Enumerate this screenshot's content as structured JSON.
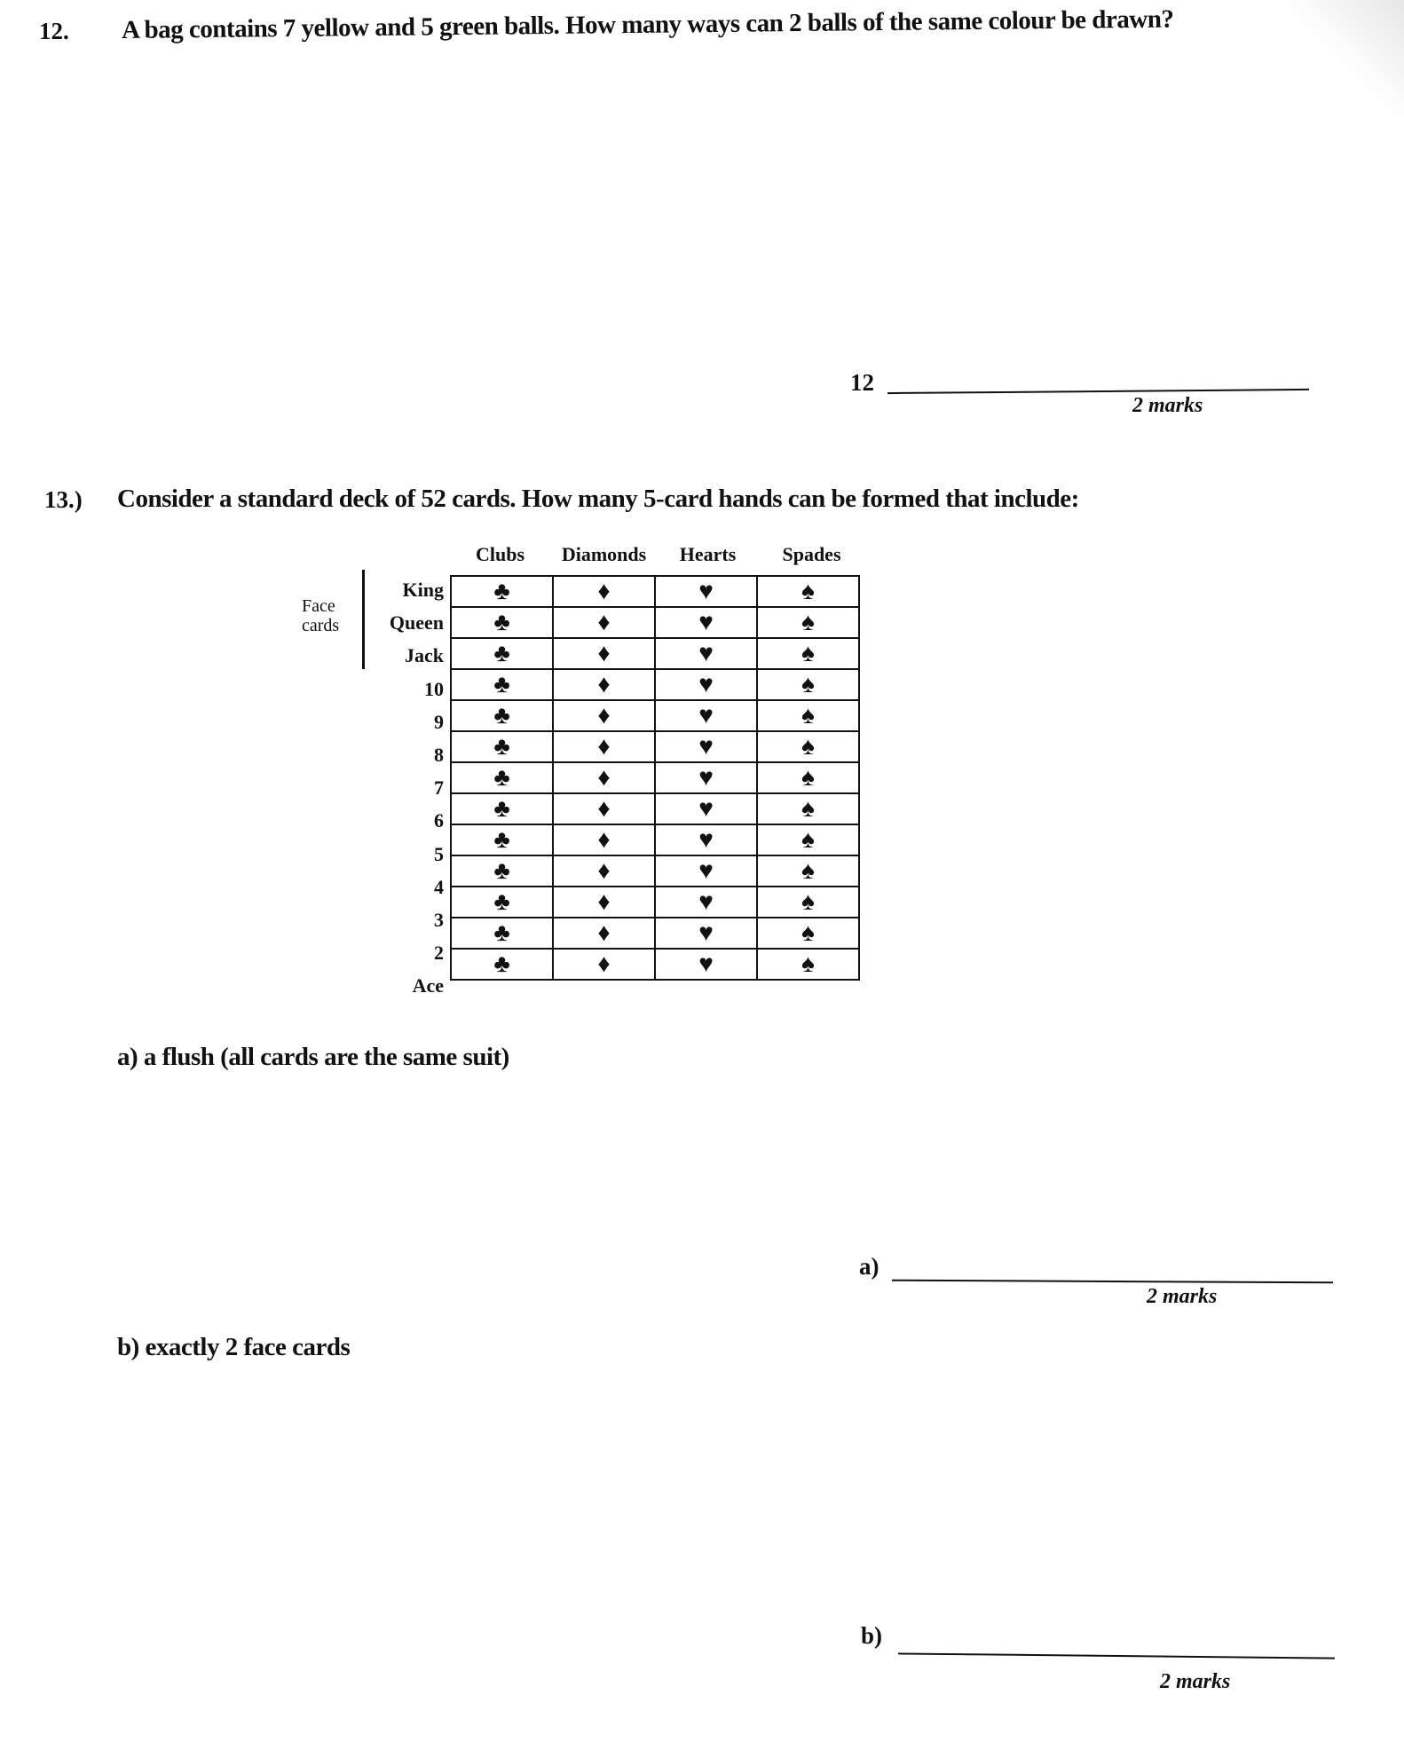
{
  "q12": {
    "number": "12.",
    "text": "A bag contains 7 yellow and 5 green balls.  How many ways can 2 balls of the same colour be drawn?",
    "answer_label": "12",
    "marks": "2 marks"
  },
  "q13": {
    "number": "13.)",
    "text": "Consider a standard deck of 52 cards. How many 5-card hands can be formed that include:",
    "table": {
      "suits": [
        "Clubs",
        "Diamonds",
        "Hearts",
        "Spades"
      ],
      "suit_symbols": [
        "♣",
        "♦",
        "♥",
        "♠"
      ],
      "ranks": [
        "King",
        "Queen",
        "Jack",
        "10",
        "9",
        "8",
        "7",
        "6",
        "5",
        "4",
        "3",
        "2",
        "Ace"
      ],
      "face_label_line1": "Face",
      "face_label_line2": "cards"
    },
    "part_a": {
      "text": "a)  a flush (all cards are the same suit)",
      "answer_label": "a)",
      "marks": "2 marks"
    },
    "part_b": {
      "text": "b)  exactly 2 face cards",
      "answer_label": "b)",
      "marks": "2 marks"
    }
  }
}
